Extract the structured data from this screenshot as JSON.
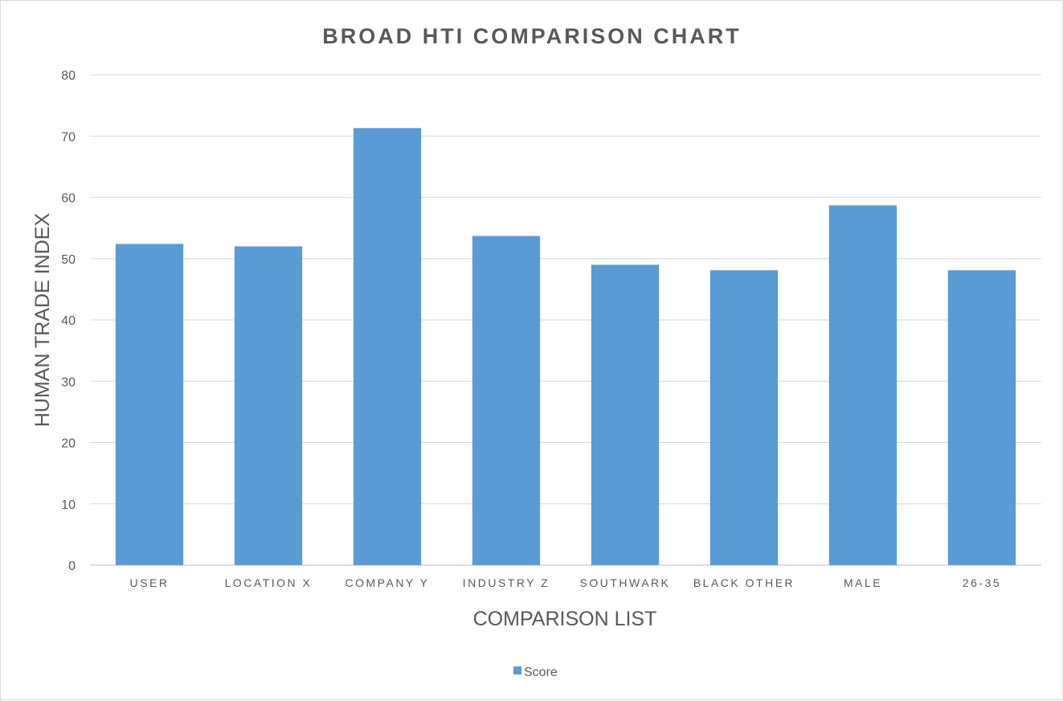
{
  "chart_data": {
    "type": "bar",
    "title": "BROAD HTI COMPARISON CHART",
    "xlabel": "COMPARISON LIST",
    "ylabel": "HUMAN TRADE INDEX",
    "categories": [
      "USER",
      "LOCATION X",
      "COMPANY Y",
      "INDUSTRY Z",
      "SOUTHWARK",
      "BLACK OTHER",
      "MALE",
      "26-35"
    ],
    "series": [
      {
        "name": "Score",
        "values": [
          52.4,
          52.0,
          71.3,
          53.7,
          49.0,
          48.1,
          58.7,
          48.1
        ],
        "color": "#5b9bd5"
      }
    ],
    "ylim": [
      0,
      80
    ],
    "yticks": [
      0,
      10,
      20,
      30,
      40,
      50,
      60,
      70,
      80
    ],
    "grid": true,
    "legend_position": "bottom"
  }
}
